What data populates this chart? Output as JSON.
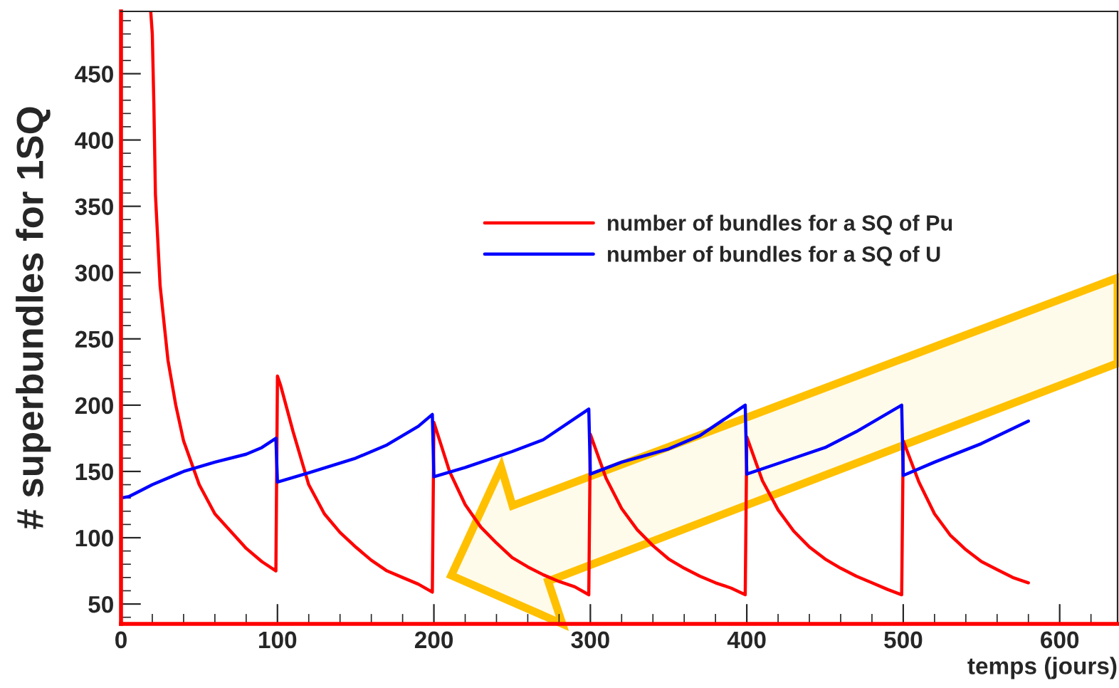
{
  "chart_data": {
    "type": "line",
    "xlabel": "temps (jours)",
    "ylabel": "# superbundles for 1SQ",
    "xlim": [
      0,
      637
    ],
    "ylim": [
      35,
      497
    ],
    "xticks": [
      0,
      100,
      200,
      300,
      400,
      500,
      600
    ],
    "yticks": [
      50,
      100,
      150,
      200,
      250,
      300,
      350,
      400,
      450
    ],
    "grid": false,
    "legend": "top",
    "line_style": "solid",
    "series": [
      {
        "name": "number of bundles for a SQ of Pu",
        "color": "#ff0000",
        "x": [
          19,
          20,
          21,
          22,
          25,
          30,
          35,
          40,
          50,
          60,
          70,
          80,
          90,
          99,
          100,
          102,
          110,
          120,
          130,
          140,
          150,
          160,
          170,
          180,
          190,
          199,
          200,
          210,
          220,
          230,
          240,
          250,
          260,
          270,
          280,
          290,
          299,
          300,
          310,
          320,
          330,
          340,
          350,
          360,
          370,
          380,
          390,
          399,
          400,
          410,
          420,
          430,
          440,
          450,
          460,
          470,
          480,
          490,
          499,
          500,
          510,
          520,
          530,
          540,
          550,
          560,
          570,
          580
        ],
        "values": [
          497,
          480,
          427,
          359,
          290,
          234,
          200,
          173,
          140,
          118,
          105,
          92,
          82,
          75,
          222,
          215,
          180,
          140,
          118,
          104,
          93,
          83,
          75,
          70,
          65,
          59,
          187,
          150,
          125,
          108,
          96,
          85,
          78,
          72,
          67,
          63,
          57,
          178,
          145,
          122,
          106,
          94,
          84,
          77,
          71,
          66,
          62,
          57,
          176,
          143,
          121,
          105,
          93,
          84,
          77,
          71,
          66,
          61,
          57,
          173,
          142,
          118,
          102,
          91,
          82,
          76,
          70,
          66
        ]
      },
      {
        "name": "number of bundles for a SQ of U",
        "color": "#0000ff",
        "x": [
          0,
          5,
          10,
          20,
          40,
          60,
          80,
          90,
          99,
          100,
          120,
          150,
          170,
          190,
          199,
          200,
          220,
          250,
          270,
          299,
          300,
          320,
          350,
          370,
          399,
          400,
          420,
          450,
          470,
          499,
          500,
          520,
          550,
          580
        ],
        "values": [
          130,
          131,
          134,
          140,
          150,
          157,
          163,
          168,
          175,
          142,
          149,
          160,
          170,
          184,
          193,
          146,
          153,
          165,
          174,
          197,
          148,
          157,
          167,
          177,
          200,
          148,
          156,
          168,
          180,
          200,
          147,
          157,
          171,
          188
        ]
      }
    ]
  }
}
